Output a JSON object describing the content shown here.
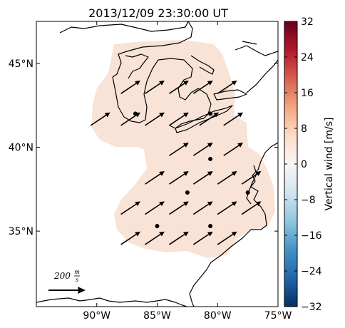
{
  "title": "2013/12/09 23:30:00 UT",
  "map": {
    "lon_range": [
      -95,
      -75
    ],
    "lat_range": [
      30.5,
      47.5
    ],
    "lon_ticks": [
      {
        "value": -90,
        "label": "90°W"
      },
      {
        "value": -85,
        "label": "85°W"
      },
      {
        "value": -80,
        "label": "80°W"
      },
      {
        "value": -75,
        "label": "75°W"
      }
    ],
    "lat_ticks": [
      {
        "value": 45,
        "label": "45°N"
      },
      {
        "value": 40,
        "label": "40°N"
      },
      {
        "value": 35,
        "label": "35°N"
      }
    ],
    "region_fill_color": "#f9e3d6",
    "coastline_color": "#000000"
  },
  "colorbar": {
    "label": "Vertical wind [m/s]",
    "min": -32,
    "max": 32,
    "ticks": [
      {
        "value": 32,
        "label": "32"
      },
      {
        "value": 24,
        "label": "24"
      },
      {
        "value": 16,
        "label": "16"
      },
      {
        "value": 8,
        "label": "8"
      },
      {
        "value": 0,
        "label": "0"
      },
      {
        "value": -8,
        "label": "−8"
      },
      {
        "value": -16,
        "label": "−16"
      },
      {
        "value": -24,
        "label": "−24"
      },
      {
        "value": -32,
        "label": "−32"
      }
    ],
    "colors": [
      "#053061",
      "#2166ac",
      "#4393c3",
      "#92c5de",
      "#d1e5f0",
      "#f7f7f7",
      "#fddbc7",
      "#f4a582",
      "#d6604d",
      "#b2182b",
      "#67001f"
    ]
  },
  "scale_key": {
    "value": "200",
    "unit_num": "m",
    "unit_den": "s"
  },
  "chart_data": {
    "type": "quiver",
    "stations": [
      {
        "lon": -86.8,
        "lat": 42.0
      },
      {
        "lon": -80.6,
        "lat": 42.0
      },
      {
        "lon": -80.6,
        "lat": 39.3
      },
      {
        "lon": -82.5,
        "lat": 37.3
      },
      {
        "lon": -77.5,
        "lat": 37.3
      },
      {
        "lon": -85.0,
        "lat": 35.3
      },
      {
        "lon": -80.6,
        "lat": 35.3
      }
    ],
    "wind_vectors": [
      {
        "lon": -90.5,
        "lat": 41.3,
        "u": 150,
        "v": 100
      },
      {
        "lon": -88.0,
        "lat": 43.2,
        "u": 150,
        "v": 100
      },
      {
        "lon": -88.0,
        "lat": 41.3,
        "u": 150,
        "v": 100
      },
      {
        "lon": -86.0,
        "lat": 43.2,
        "u": 150,
        "v": 100
      },
      {
        "lon": -86.0,
        "lat": 41.3,
        "u": 150,
        "v": 100
      },
      {
        "lon": -84.0,
        "lat": 43.2,
        "u": 150,
        "v": 100
      },
      {
        "lon": -84.0,
        "lat": 41.3,
        "u": 150,
        "v": 100
      },
      {
        "lon": -82.0,
        "lat": 43.2,
        "u": 150,
        "v": 100
      },
      {
        "lon": -80.0,
        "lat": 43.2,
        "u": 150,
        "v": 100
      },
      {
        "lon": -81.5,
        "lat": 41.3,
        "u": 150,
        "v": 100
      },
      {
        "lon": -79.5,
        "lat": 41.3,
        "u": 150,
        "v": 100
      },
      {
        "lon": -84.0,
        "lat": 39.5,
        "u": 150,
        "v": 100
      },
      {
        "lon": -82.0,
        "lat": 39.5,
        "u": 150,
        "v": 100
      },
      {
        "lon": -79.5,
        "lat": 39.5,
        "u": 150,
        "v": 100
      },
      {
        "lon": -86.0,
        "lat": 37.8,
        "u": 150,
        "v": 100
      },
      {
        "lon": -84.0,
        "lat": 37.8,
        "u": 150,
        "v": 100
      },
      {
        "lon": -82.0,
        "lat": 37.8,
        "u": 150,
        "v": 100
      },
      {
        "lon": -80.0,
        "lat": 37.8,
        "u": 150,
        "v": 100
      },
      {
        "lon": -78.0,
        "lat": 37.8,
        "u": 150,
        "v": 100
      },
      {
        "lon": -88.0,
        "lat": 36.0,
        "u": 150,
        "v": 100
      },
      {
        "lon": -86.0,
        "lat": 36.0,
        "u": 150,
        "v": 100
      },
      {
        "lon": -84.0,
        "lat": 36.0,
        "u": 150,
        "v": 100
      },
      {
        "lon": -82.0,
        "lat": 36.0,
        "u": 150,
        "v": 100
      },
      {
        "lon": -80.0,
        "lat": 36.0,
        "u": 150,
        "v": 100
      },
      {
        "lon": -78.0,
        "lat": 36.0,
        "u": 150,
        "v": 100
      },
      {
        "lon": -88.0,
        "lat": 34.2,
        "u": 150,
        "v": 100
      },
      {
        "lon": -86.0,
        "lat": 34.2,
        "u": 150,
        "v": 100
      },
      {
        "lon": -84.0,
        "lat": 34.2,
        "u": 150,
        "v": 100
      },
      {
        "lon": -82.0,
        "lat": 34.2,
        "u": 150,
        "v": 100
      },
      {
        "lon": -80.0,
        "lat": 34.2,
        "u": 150,
        "v": 100
      }
    ]
  }
}
